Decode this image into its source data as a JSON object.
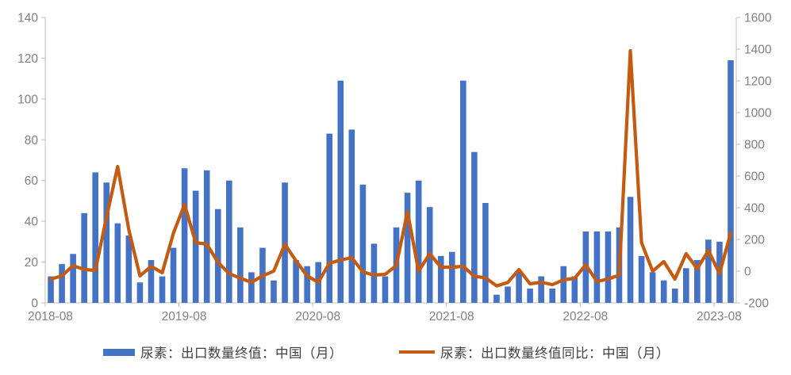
{
  "chart_data": {
    "type": "bar",
    "subtype": "combo-bar-line-dual-axis",
    "title": "",
    "xlabel": "",
    "ylabel_left": "",
    "ylabel_right": "",
    "grid": false,
    "legend_position": "bottom",
    "categories": [
      "2018-08",
      "2018-09",
      "2018-10",
      "2018-11",
      "2018-12",
      "2019-01",
      "2019-02",
      "2019-03",
      "2019-04",
      "2019-05",
      "2019-06",
      "2019-07",
      "2019-08",
      "2019-09",
      "2019-10",
      "2019-11",
      "2019-12",
      "2020-01",
      "2020-02",
      "2020-03",
      "2020-04",
      "2020-05",
      "2020-06",
      "2020-07",
      "2020-08",
      "2020-09",
      "2020-10",
      "2020-11",
      "2020-12",
      "2021-01",
      "2021-02",
      "2021-03",
      "2021-04",
      "2021-05",
      "2021-06",
      "2021-07",
      "2021-08",
      "2021-09",
      "2021-10",
      "2021-11",
      "2021-12",
      "2022-01",
      "2022-02",
      "2022-03",
      "2022-04",
      "2022-05",
      "2022-06",
      "2022-07",
      "2022-08",
      "2022-09",
      "2022-10",
      "2022-11",
      "2022-12",
      "2023-01",
      "2023-02",
      "2023-03",
      "2023-04",
      "2023-05",
      "2023-06",
      "2023-07",
      "2023-08",
      "2023-09"
    ],
    "series": [
      {
        "name": "尿素：出口数量终值：中国（月）",
        "type": "bar",
        "axis": "left",
        "color": "#4472C4",
        "values": [
          13,
          19,
          24,
          44,
          64,
          59,
          39,
          33,
          10,
          21,
          13,
          27,
          66,
          55,
          65,
          46,
          60,
          37,
          15,
          27,
          11,
          59,
          21,
          18,
          20,
          83,
          109,
          85,
          58,
          29,
          13,
          37,
          54,
          60,
          47,
          23,
          25,
          109,
          74,
          49,
          4,
          8,
          15,
          7,
          13,
          7,
          18,
          13,
          35,
          35,
          35,
          37,
          52,
          23,
          15,
          11,
          7,
          17,
          21,
          31,
          30,
          119
        ]
      },
      {
        "name": "尿素：出口数量终值同比：中国（月）",
        "type": "line",
        "axis": "right",
        "color": "#C55A11",
        "values": [
          -50,
          -30,
          35,
          10,
          5,
          340,
          660,
          260,
          -30,
          30,
          -10,
          240,
          420,
          180,
          170,
          55,
          -15,
          -45,
          -70,
          -30,
          0,
          170,
          65,
          -30,
          -70,
          50,
          70,
          85,
          -5,
          -25,
          -20,
          35,
          375,
          0,
          110,
          25,
          25,
          30,
          -32,
          -42,
          -93,
          -72,
          10,
          -80,
          -70,
          -85,
          -55,
          -45,
          40,
          -65,
          -50,
          -25,
          1390,
          180,
          0,
          60,
          -50,
          110,
          15,
          130,
          -15,
          240
        ]
      }
    ],
    "left_axis": {
      "min": 0,
      "max": 140,
      "step": 20,
      "tick_labels": [
        "0",
        "20",
        "40",
        "60",
        "80",
        "100",
        "120",
        "140"
      ]
    },
    "right_axis": {
      "min": -200,
      "max": 1600,
      "step": 200,
      "tick_labels": [
        "-200",
        "0",
        "200",
        "400",
        "600",
        "800",
        "1000",
        "1200",
        "1400",
        "1600"
      ]
    },
    "x_tick_labels": [
      "2018-08",
      "2019-08",
      "2020-08",
      "2021-08",
      "2022-08",
      "2023-08"
    ],
    "x_tick_indices": [
      0,
      12,
      24,
      36,
      48,
      60
    ]
  },
  "legend": {
    "series": [
      {
        "label": "尿素：出口数量终值：中国（月）",
        "swatch_color": "#4472C4"
      },
      {
        "label": "尿素：出口数量终值同比：中国（月）",
        "swatch_color": "#C55A11"
      }
    ]
  },
  "colors": {
    "bar": "#4472C4",
    "line": "#C55A11",
    "axis_line": "#BFBFBF",
    "tick_text": "#808080",
    "legend_text": "#404040",
    "background": "#FFFFFF"
  }
}
